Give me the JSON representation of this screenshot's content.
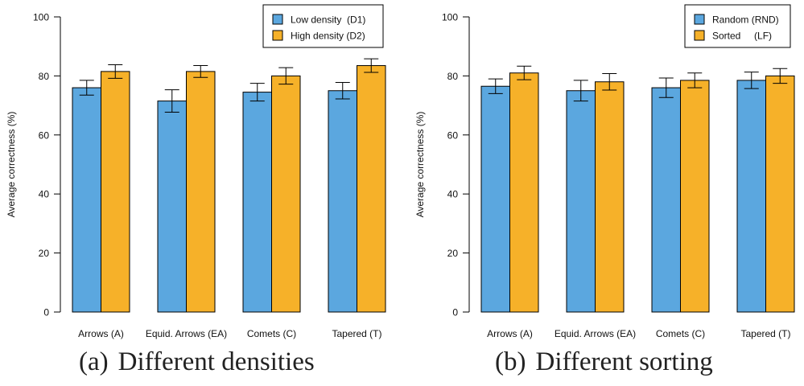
{
  "colors": {
    "series1": "#5ba7df",
    "series2": "#f6b129",
    "axis": "#000000",
    "text": "#111111"
  },
  "chart_data": [
    {
      "type": "bar",
      "caption_letter": "(a)",
      "caption": "Different densities",
      "ylabel": "Average correctness (%)",
      "xlabel": "",
      "ylim": [
        0,
        100
      ],
      "yticks": [
        0,
        20,
        40,
        60,
        80,
        100
      ],
      "grid": false,
      "legend_position": "top-right",
      "categories": [
        "Arrows (A)",
        "Equid. Arrows (EA)",
        "Comets (C)",
        "Tapered (T)"
      ],
      "series": [
        {
          "name": "Low density  (D1)",
          "values": [
            76,
            71.5,
            74.5,
            75
          ],
          "error": [
            2.5,
            3.8,
            3.0,
            2.8
          ]
        },
        {
          "name": "High density (D2)",
          "values": [
            81.5,
            81.5,
            80,
            83.5
          ],
          "error": [
            2.3,
            2.0,
            2.8,
            2.3
          ]
        }
      ]
    },
    {
      "type": "bar",
      "caption_letter": "(b)",
      "caption": "Different sorting",
      "ylabel": "Average correctness (%)",
      "xlabel": "",
      "ylim": [
        0,
        100
      ],
      "yticks": [
        0,
        20,
        40,
        60,
        80,
        100
      ],
      "grid": false,
      "legend_position": "top-right",
      "categories": [
        "Arrows (A)",
        "Equid. Arrows (EA)",
        "Comets (C)",
        "Tapered (T)"
      ],
      "series": [
        {
          "name": "Random (RND)",
          "values": [
            76.5,
            75,
            76,
            78.5
          ],
          "error": [
            2.5,
            3.5,
            3.3,
            2.8
          ]
        },
        {
          "name": "Sorted     (LF)",
          "values": [
            81,
            78,
            78.5,
            80
          ],
          "error": [
            2.3,
            2.8,
            2.5,
            2.5
          ]
        }
      ]
    }
  ]
}
